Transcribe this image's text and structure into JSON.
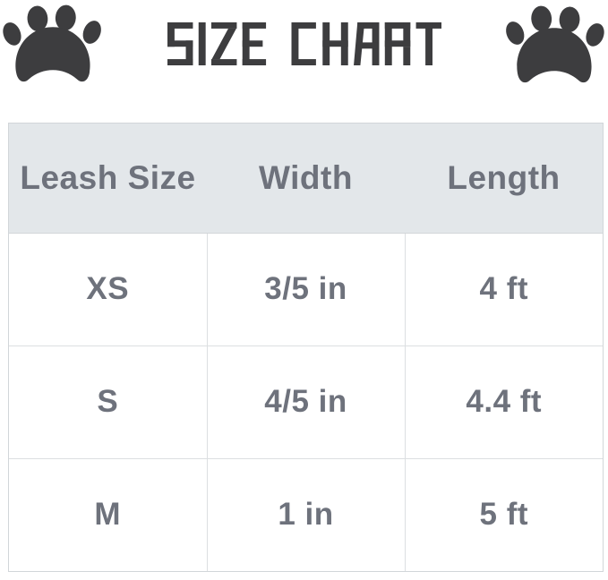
{
  "page": {
    "background": "#ffffff"
  },
  "header": {
    "title": "SIZE CHART",
    "title_color": "#3d3d3f",
    "paw_color": "#3d3d3f",
    "left_icon": "paw-print-icon",
    "right_icon": "paw-print-icon"
  },
  "chart_data": {
    "type": "table",
    "title": "SIZE CHART",
    "columns": [
      "Leash Size",
      "Width",
      "Length"
    ],
    "rows": [
      [
        "XS",
        "3/5 in",
        "4 ft"
      ],
      [
        "S",
        "4/5 in",
        "4.4 ft"
      ],
      [
        "M",
        "1 in",
        "5 ft"
      ]
    ],
    "header_bg": "#e3e7ea",
    "header_text_color": "#6e727c",
    "cell_text_color": "#6e727c",
    "outer_border_color": "#d2d6d9",
    "grid_line_color": "#dcdfe1",
    "grid": true,
    "legend_position": "none"
  }
}
